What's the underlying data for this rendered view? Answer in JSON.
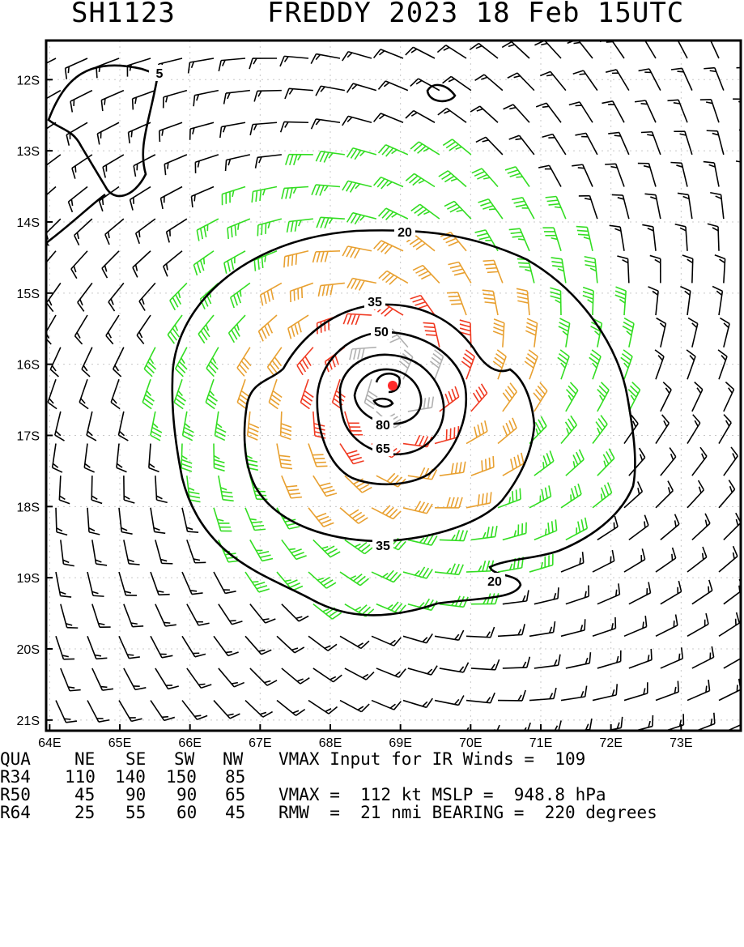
{
  "header": {
    "storm_id": "SH1123",
    "storm_title": "FREDDY 2023 18 Feb 15UTC"
  },
  "map": {
    "lon_labels": [
      "64E",
      "65E",
      "66E",
      "67E",
      "68E",
      "69E",
      "70E",
      "71E",
      "72E",
      "73E"
    ],
    "lat_labels": [
      "12S",
      "13S",
      "14S",
      "15S",
      "16S",
      "17S",
      "18S",
      "19S",
      "20S",
      "21S"
    ],
    "lon_range": [
      63.95,
      73.85
    ],
    "lat_range": [
      -11.45,
      -21.15
    ],
    "center": {
      "lon": 68.85,
      "lat": -16.2
    },
    "contour_labels": [
      "5",
      "20",
      "35",
      "50",
      "65",
      "80",
      "35",
      "20"
    ],
    "colors": {
      "wind_lt34": "#000000",
      "wind_34_50": "#33dd22",
      "wind_50_64": "#e8a030",
      "wind_64_83": "#f03a22",
      "wind_83_96": "#b0b0b0",
      "center_marker": "#ff2a2a"
    }
  },
  "table": {
    "header": [
      "QUA",
      "NE",
      "SE",
      "SW",
      "NW"
    ],
    "rows": [
      {
        "label": "R34",
        "ne": "110",
        "se": "140",
        "sw": "150",
        "nw": "85"
      },
      {
        "label": "R50",
        "ne": "45",
        "se": "90",
        "sw": "90",
        "nw": "65"
      },
      {
        "label": "R64",
        "ne": "25",
        "se": "55",
        "sw": "60",
        "nw": "45"
      }
    ],
    "info": [
      "VMAX Input for IR Winds =  109",
      "",
      "VMAX =  112 kt MSLP =  948.8 hPa",
      "RMW  =  21 nmi BEARING =  220 degrees"
    ]
  }
}
